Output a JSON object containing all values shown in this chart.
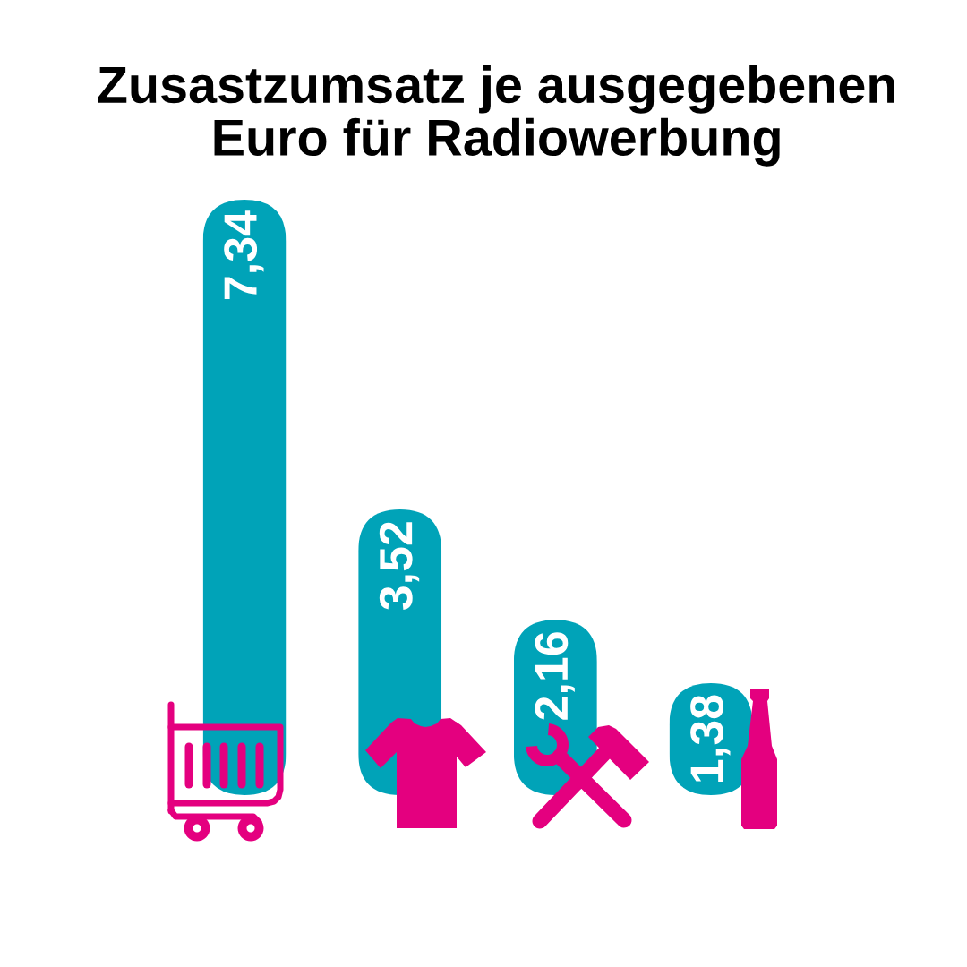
{
  "chart_data": {
    "type": "bar",
    "title": "Zusastzumsatz je ausgegebenen\nEuro für Radiowerbung",
    "categories": [
      null,
      null,
      null,
      null
    ],
    "values": [
      7.34,
      3.52,
      2.16,
      1.38
    ],
    "color": "#00a3b8",
    "value_labels": [
      "7,34",
      "3,52",
      "2,16",
      "1,38"
    ],
    "tick_labels": false
  }
}
